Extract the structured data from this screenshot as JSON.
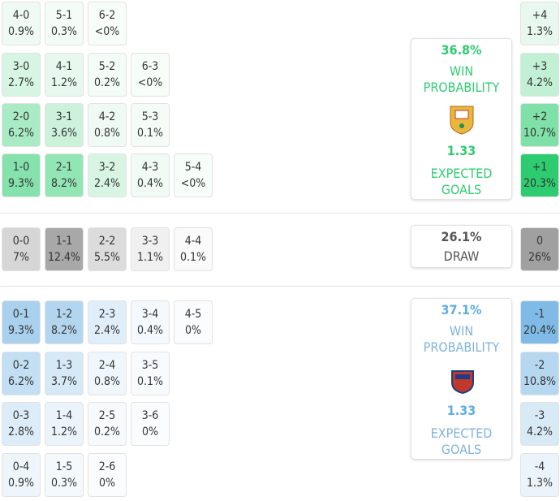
{
  "home": {
    "rows": [
      [
        {
          "score": "4-0",
          "prob": "0.9%",
          "color": "#eefaf3"
        },
        {
          "score": "5-1",
          "prob": "0.3%",
          "color": "#f3fcf7"
        },
        {
          "score": "6-2",
          "prob": "<0%",
          "color": "#f7fdf9"
        }
      ],
      [
        {
          "score": "3-0",
          "prob": "2.7%",
          "color": "#d6f5e3"
        },
        {
          "score": "4-1",
          "prob": "1.2%",
          "color": "#e8f8ee"
        },
        {
          "score": "5-2",
          "prob": "0.2%",
          "color": "#f3fcf7"
        },
        {
          "score": "6-3",
          "prob": "<0%",
          "color": "#f7fdf9"
        }
      ],
      [
        {
          "score": "2-0",
          "prob": "6.2%",
          "color": "#a9ebc4"
        },
        {
          "score": "3-1",
          "prob": "3.6%",
          "color": "#ccf2dc"
        },
        {
          "score": "4-2",
          "prob": "0.8%",
          "color": "#eefaf3"
        },
        {
          "score": "5-3",
          "prob": "0.1%",
          "color": "#f5fcf8"
        }
      ],
      [
        {
          "score": "1-0",
          "prob": "9.3%",
          "color": "#86e2ad"
        },
        {
          "score": "2-1",
          "prob": "8.2%",
          "color": "#92e5b5"
        },
        {
          "score": "3-2",
          "prob": "2.4%",
          "color": "#d8f5e4"
        },
        {
          "score": "4-3",
          "prob": "0.4%",
          "color": "#f1fbf5"
        },
        {
          "score": "5-4",
          "prob": "<0%",
          "color": "#f7fdf9"
        }
      ]
    ],
    "margins": [
      {
        "label": "+4",
        "prob": "1.3%",
        "color": "#e8f8ee"
      },
      {
        "label": "+3",
        "prob": "4.2%",
        "color": "#c2f0d5"
      },
      {
        "label": "+2",
        "prob": "10.7%",
        "color": "#7fe0a8"
      },
      {
        "label": "+1",
        "prob": "20.3%",
        "color": "#2ecc71"
      }
    ],
    "panel": {
      "win_pct": "36.8%",
      "win_label": "WIN PROBABILITY",
      "xg": "1.33",
      "xg_label": "EXPECTED GOALS"
    }
  },
  "draw": {
    "row": [
      {
        "score": "0-0",
        "prob": "7%",
        "color": "#d6d6d6"
      },
      {
        "score": "1-1",
        "prob": "12.4%",
        "color": "#a8a8a8"
      },
      {
        "score": "2-2",
        "prob": "5.5%",
        "color": "#dcdcdc"
      },
      {
        "score": "3-3",
        "prob": "1.1%",
        "color": "#f0f0f0"
      },
      {
        "score": "4-4",
        "prob": "0.1%",
        "color": "#fafafa"
      }
    ],
    "margin": {
      "label": "0",
      "prob": "26%",
      "color": "#a0a0a0"
    },
    "panel": {
      "pct": "26.1%",
      "label": "DRAW"
    }
  },
  "away": {
    "rows": [
      [
        {
          "score": "0-1",
          "prob": "9.3%",
          "color": "#a9d1ee"
        },
        {
          "score": "1-2",
          "prob": "8.2%",
          "color": "#b3d6f0"
        },
        {
          "score": "2-3",
          "prob": "2.4%",
          "color": "#e0eef9"
        },
        {
          "score": "3-4",
          "prob": "0.4%",
          "color": "#f4f9fd"
        },
        {
          "score": "4-5",
          "prob": "0%",
          "color": "#fafcfe"
        }
      ],
      [
        {
          "score": "0-2",
          "prob": "6.2%",
          "color": "#c3dff3"
        },
        {
          "score": "1-3",
          "prob": "3.7%",
          "color": "#d6e9f7"
        },
        {
          "score": "2-4",
          "prob": "0.8%",
          "color": "#f0f7fc"
        },
        {
          "score": "3-5",
          "prob": "0.1%",
          "color": "#f8fbfe"
        }
      ],
      [
        {
          "score": "0-3",
          "prob": "2.8%",
          "color": "#dcecf8"
        },
        {
          "score": "1-4",
          "prob": "1.2%",
          "color": "#ecf4fb"
        },
        {
          "score": "2-5",
          "prob": "0.2%",
          "color": "#f6fafd"
        },
        {
          "score": "3-6",
          "prob": "0%",
          "color": "#fafcfe"
        }
      ],
      [
        {
          "score": "0-4",
          "prob": "0.9%",
          "color": "#eef5fb"
        },
        {
          "score": "1-5",
          "prob": "0.3%",
          "color": "#f4f9fd"
        },
        {
          "score": "2-6",
          "prob": "0%",
          "color": "#fafcfe"
        }
      ]
    ],
    "margins": [
      {
        "label": "-1",
        "prob": "20.4%",
        "color": "#7fbbe6"
      },
      {
        "label": "-2",
        "prob": "10.8%",
        "color": "#b5d7f0"
      },
      {
        "label": "-3",
        "prob": "4.2%",
        "color": "#d9eaf7"
      },
      {
        "label": "-4",
        "prob": "1.3%",
        "color": "#ecf4fb"
      }
    ],
    "panel": {
      "win_pct": "37.1%",
      "win_label": "WIN PROBABILITY",
      "xg": "1.33",
      "xg_label": "EXPECTED GOALS"
    }
  }
}
